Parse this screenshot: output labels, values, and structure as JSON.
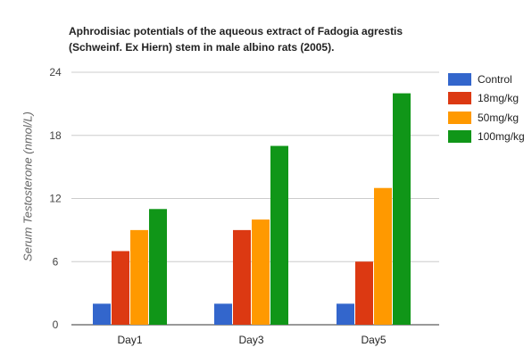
{
  "chart_data": {
    "type": "bar",
    "title": "Aphrodisiac potentials of the aqueous extract of Fadogia agrestis (Schweinf. Ex Hiern) stem in male albino rats (2005).",
    "xlabel": "",
    "ylabel": "Serum Testosterone (nmol/L)",
    "categories": [
      "Day1",
      "Day3",
      "Day5"
    ],
    "series": [
      {
        "name": "Control",
        "color": "#3366cc",
        "values": [
          2,
          2,
          2
        ]
      },
      {
        "name": "18mg/kg",
        "color": "#dc3912",
        "values": [
          7,
          9,
          6
        ]
      },
      {
        "name": "50mg/kg",
        "color": "#ff9900",
        "values": [
          9,
          10,
          13
        ]
      },
      {
        "name": "100mg/kg",
        "color": "#109618",
        "values": [
          11,
          17,
          22
        ]
      }
    ],
    "yticks": [
      "0",
      "6",
      "12",
      "18",
      "24"
    ],
    "ylim": [
      0,
      24
    ],
    "grid": true,
    "legend": "right"
  }
}
